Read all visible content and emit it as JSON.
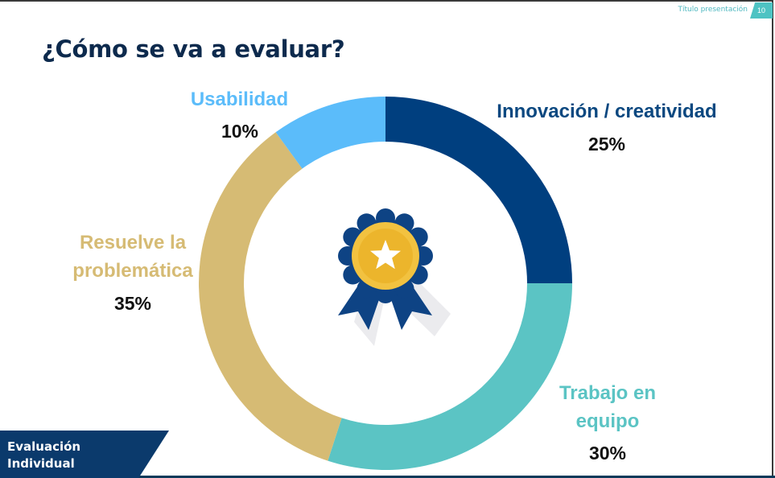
{
  "header": {
    "presentation_label": "Título presentación",
    "page_number": "10"
  },
  "title": "¿Cómo se va a evaluar?",
  "footer": {
    "line1": "Evaluación",
    "line2": "Individual"
  },
  "icons": {
    "center": "award-medal-icon"
  },
  "colors": {
    "title": "#0d2a4d",
    "innovacion": "#003f7f",
    "trabajo": "#5bc4c4",
    "resuelve": "#d6bb74",
    "usabilidad": "#5bbcfa",
    "medal_dark": "#0e4384",
    "medal_gold": "#f2c240"
  },
  "chart_data": {
    "type": "pie",
    "variant": "donut",
    "title": "",
    "slices": [
      {
        "name": "Innovación / creatividad",
        "label_lines": [
          "Innovación / creatividad"
        ],
        "value": 25,
        "value_label": "25%",
        "color": "#003f7f"
      },
      {
        "name": "Trabajo en equipo",
        "label_lines": [
          "Trabajo en",
          "equipo"
        ],
        "value": 30,
        "value_label": "30%",
        "color": "#5bc4c4"
      },
      {
        "name": "Resuelve la problemática",
        "label_lines": [
          "Resuelve la",
          "problemática"
        ],
        "value": 35,
        "value_label": "35%",
        "color": "#d6bb74"
      },
      {
        "name": "Usabilidad",
        "label_lines": [
          "Usabilidad"
        ],
        "value": 10,
        "value_label": "10%",
        "color": "#5bbcfa"
      }
    ]
  }
}
